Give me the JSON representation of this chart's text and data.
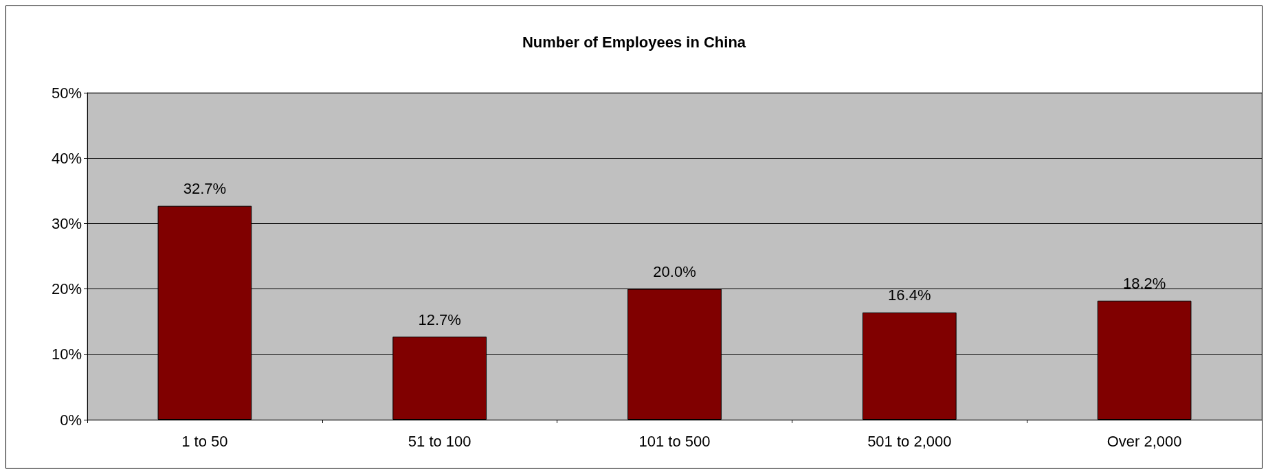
{
  "chart_data": {
    "type": "bar",
    "title": "Number of Employees in China",
    "categories": [
      "1 to 50",
      "51 to 100",
      "101 to 500",
      "501 to 2,000",
      "Over 2,000"
    ],
    "values": [
      32.7,
      12.7,
      20.0,
      16.4,
      18.2
    ],
    "value_labels": [
      "32.7%",
      "12.7%",
      "20.0%",
      "16.4%",
      "18.2%"
    ],
    "color": "#800000",
    "ylim": [
      0,
      50
    ],
    "yticks": [
      {
        "value": 0,
        "label": "0%"
      },
      {
        "value": 10,
        "label": "10%"
      },
      {
        "value": 20,
        "label": "20%"
      },
      {
        "value": 30,
        "label": "30%"
      },
      {
        "value": 40,
        "label": "40%"
      },
      {
        "value": 50,
        "label": "50%"
      }
    ],
    "grid": "y"
  }
}
